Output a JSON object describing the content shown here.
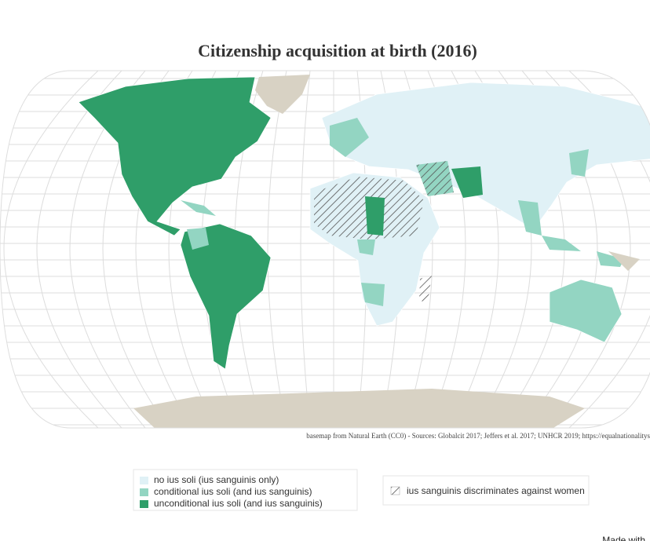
{
  "header": {
    "title": "Citizenship acquisition at birth (2016)"
  },
  "source": "basemap from Natural Earth (CC0) - Sources: Globalcit 2017; Jeffers et al. 2017; UNHCR 2019; https://equalnationalitys",
  "legend": {
    "items": [
      {
        "label": "no ius soli (ius sanguinis only)",
        "color": "#e0f1f6"
      },
      {
        "label": "conditional ius soli (and ius sanguinis)",
        "color": "#93d5c2"
      },
      {
        "label": "unconditional ius soli (and ius sanguinis)",
        "color": "#2f9e69"
      }
    ],
    "hatched": {
      "label": "ius sanguinis discriminates against women"
    }
  },
  "footer": "Made with"
}
